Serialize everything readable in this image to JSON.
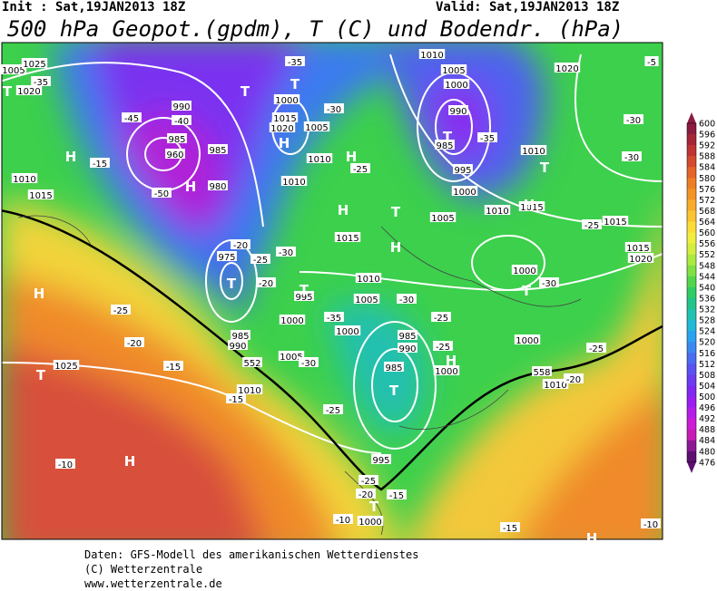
{
  "header": {
    "init": "Init : Sat,19JAN2013 18Z",
    "valid": "Valid: Sat,19JAN2013 18Z",
    "title": "500 hPa Geopot.(gpdm), T (C) und Bodendr. (hPa)"
  },
  "map": {
    "labels": [
      "1005",
      "1025",
      "1020",
      "T",
      "-35",
      "-45",
      "990",
      "-40",
      "985",
      "960",
      "H",
      "-15",
      "1010",
      "1015",
      "-50",
      "H",
      "980",
      "985",
      "1000",
      "1015",
      "1020",
      "H",
      "-35",
      "T",
      "T",
      "1005",
      "-30",
      "1010",
      "1010",
      "H",
      "-25",
      "H",
      "T",
      "1015",
      "H",
      "1010",
      "1005",
      "1000",
      "990",
      "T",
      "985",
      "995",
      "1000",
      "1005",
      "1010",
      "1015",
      "1010",
      "T",
      "1020",
      "-35",
      "-30",
      "-30",
      "H",
      "-25",
      "1015",
      "1015",
      "1020",
      "1000",
      "T",
      "-30",
      "H",
      "-25",
      "-20",
      "T",
      "1025",
      "-15",
      "-15",
      "1010",
      "1005",
      "1000",
      "995",
      "T",
      "1010",
      "1005",
      "-35",
      "-30",
      "1000",
      "990",
      "985",
      "985",
      "T",
      "-25",
      "-25",
      "1000",
      "H",
      "-25",
      "-30",
      "995",
      "-20",
      "-15",
      "1000",
      "T",
      "H",
      "-10",
      "-10",
      "-25",
      "1000",
      "-25",
      "1010",
      "-20",
      "-10",
      "-15",
      "H",
      "-5",
      "-20",
      "975",
      "T",
      "985",
      "990",
      "-25",
      "-20",
      "-30",
      "552",
      "558"
    ]
  },
  "colorbar": {
    "labels": [
      600,
      596,
      592,
      588,
      584,
      580,
      576,
      572,
      568,
      564,
      560,
      556,
      552,
      548,
      544,
      540,
      536,
      532,
      528,
      524,
      520,
      516,
      512,
      508,
      504,
      500,
      496,
      492,
      488,
      484,
      480,
      476
    ],
    "colors": [
      "#8a1c40",
      "#a52638",
      "#be3434",
      "#d44a30",
      "#e4642a",
      "#ee7e26",
      "#f49426",
      "#f8ac2a",
      "#fbc432",
      "#fcdc3a",
      "#f2ee40",
      "#d4ee40",
      "#acea40",
      "#80e044",
      "#52d64c",
      "#30cc64",
      "#22c48a",
      "#20c2b2",
      "#22b8d8",
      "#2aa2f0",
      "#3a88f0",
      "#4a6cf0",
      "#5a52f0",
      "#6c3cf0",
      "#8028f0",
      "#9a1ef0",
      "#b41ee6",
      "#cc1ed6",
      "#c81cb4",
      "#8c1896",
      "#5c1070"
    ]
  },
  "footer": {
    "lines": [
      "Daten: GFS-Modell des amerikanischen Wetterdienstes",
      "(C) Wetterzentrale",
      "www.wetterzentrale.de"
    ]
  }
}
